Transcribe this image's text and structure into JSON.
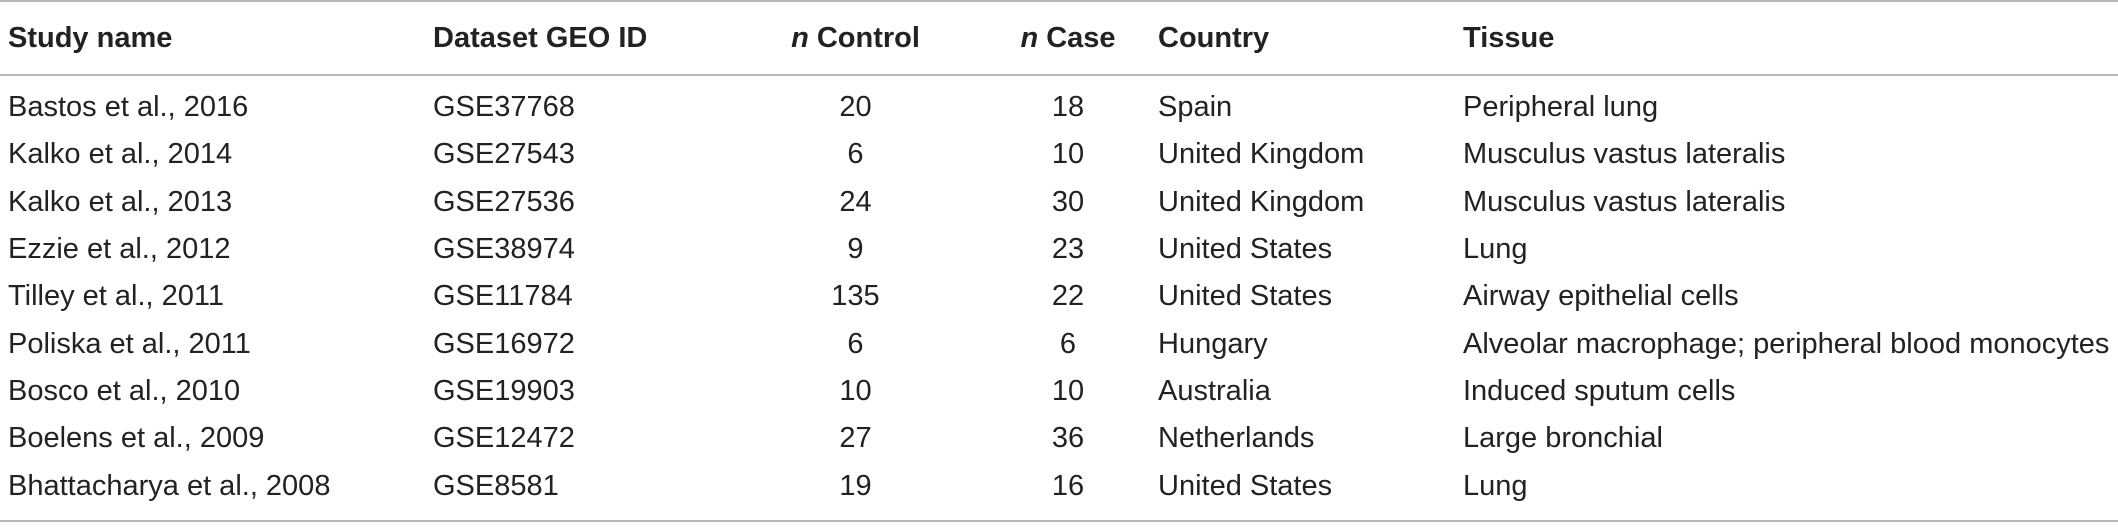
{
  "table": {
    "headers": {
      "study_name": "Study name",
      "dataset_geo_id": "Dataset GEO ID",
      "n_control_prefix": "n",
      "n_control_label": " Control",
      "n_case_prefix": "n",
      "n_case_label": " Case",
      "country": "Country",
      "tissue": "Tissue"
    },
    "rows": [
      {
        "study": "Bastos et al., 2016",
        "geo": "GSE37768",
        "control": "20",
        "case": "18",
        "country": "Spain",
        "tissue": "Peripheral lung"
      },
      {
        "study": "Kalko et al., 2014",
        "geo": "GSE27543",
        "control": "6",
        "case": "10",
        "country": "United Kingdom",
        "tissue": "Musculus vastus lateralis"
      },
      {
        "study": "Kalko et al., 2013",
        "geo": "GSE27536",
        "control": "24",
        "case": "30",
        "country": "United Kingdom",
        "tissue": "Musculus vastus lateralis"
      },
      {
        "study": "Ezzie et al., 2012",
        "geo": "GSE38974",
        "control": "9",
        "case": "23",
        "country": "United States",
        "tissue": "Lung"
      },
      {
        "study": "Tilley et al., 2011",
        "geo": "GSE11784",
        "control": "135",
        "case": "22",
        "country": "United States",
        "tissue": "Airway epithelial cells"
      },
      {
        "study": "Poliska et al., 2011",
        "geo": "GSE16972",
        "control": "6",
        "case": "6",
        "country": "Hungary",
        "tissue": "Alveolar macrophage; peripheral blood monocytes"
      },
      {
        "study": "Bosco et al., 2010",
        "geo": "GSE19903",
        "control": "10",
        "case": "10",
        "country": "Australia",
        "tissue": "Induced sputum cells"
      },
      {
        "study": "Boelens et al., 2009",
        "geo": "GSE12472",
        "control": "27",
        "case": "36",
        "country": "Netherlands",
        "tissue": "Large bronchial"
      },
      {
        "study": "Bhattacharya et al., 2008",
        "geo": "GSE8581",
        "control": "19",
        "case": "16",
        "country": "United States",
        "tissue": "Lung"
      }
    ]
  }
}
